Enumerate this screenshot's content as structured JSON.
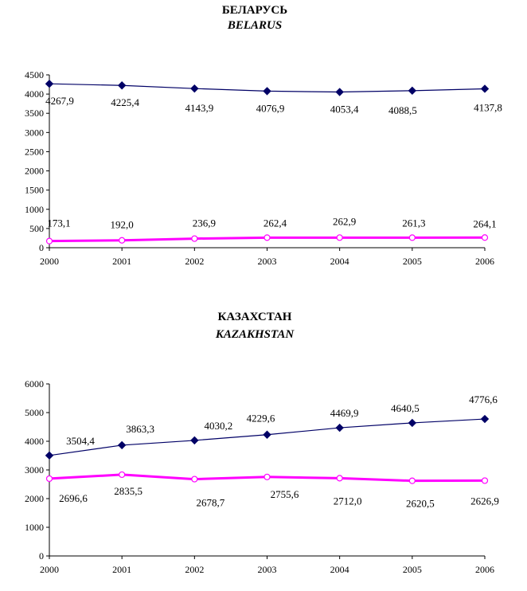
{
  "chart_data": [
    {
      "type": "line",
      "title": "БЕЛАРУСЬ",
      "subtitle": "BELARUS",
      "categories": [
        "2000",
        "2001",
        "2002",
        "2003",
        "2004",
        "2005",
        "2006"
      ],
      "ylim": [
        0,
        4500
      ],
      "yticks": [
        "0",
        "500",
        "1000",
        "1500",
        "2000",
        "2500",
        "3000",
        "3500",
        "4000",
        "4500"
      ],
      "grid": false,
      "series": [
        {
          "values": [
            4267.9,
            4225.4,
            4143.9,
            4076.9,
            4053.4,
            4088.5,
            4137.8
          ],
          "labels": [
            "4267,9",
            "4225,4",
            "4143,9",
            "4076,9",
            "4053,4",
            "4088,5",
            "4137,8"
          ],
          "color": "#000066",
          "marker": "diamond"
        },
        {
          "values": [
            173.1,
            192.0,
            236.9,
            262.4,
            262.9,
            261.3,
            264.1
          ],
          "labels": [
            "173,1",
            "192,0",
            "236,9",
            "262,4",
            "262,9",
            "261,3",
            "264,1"
          ],
          "color": "#ff00ff",
          "marker": "circle"
        }
      ]
    },
    {
      "type": "line",
      "title": "КАЗАХСТАН",
      "subtitle": "KAZAKHSTAN",
      "categories": [
        "2000",
        "2001",
        "2002",
        "2003",
        "2004",
        "2005",
        "2006"
      ],
      "ylim": [
        0,
        6000
      ],
      "yticks": [
        "0",
        "1000",
        "2000",
        "3000",
        "4000",
        "5000",
        "6000"
      ],
      "grid": false,
      "series": [
        {
          "values": [
            3504.4,
            3863.3,
            4030.2,
            4229.6,
            4469.9,
            4640.5,
            4776.6
          ],
          "labels": [
            "3504,4",
            "3863,3",
            "4030,2",
            "4229,6",
            "4469,9",
            "4640,5",
            "4776,6"
          ],
          "color": "#000066",
          "marker": "diamond"
        },
        {
          "values": [
            2696.6,
            2835.5,
            2678.7,
            2755.6,
            2712.0,
            2620.5,
            2626.9
          ],
          "labels": [
            "2696,6",
            "2835,5",
            "2678,7",
            "2755,6",
            "2712,0",
            "2620,5",
            "2626,9"
          ],
          "color": "#ff00ff",
          "marker": "circle"
        }
      ]
    }
  ]
}
